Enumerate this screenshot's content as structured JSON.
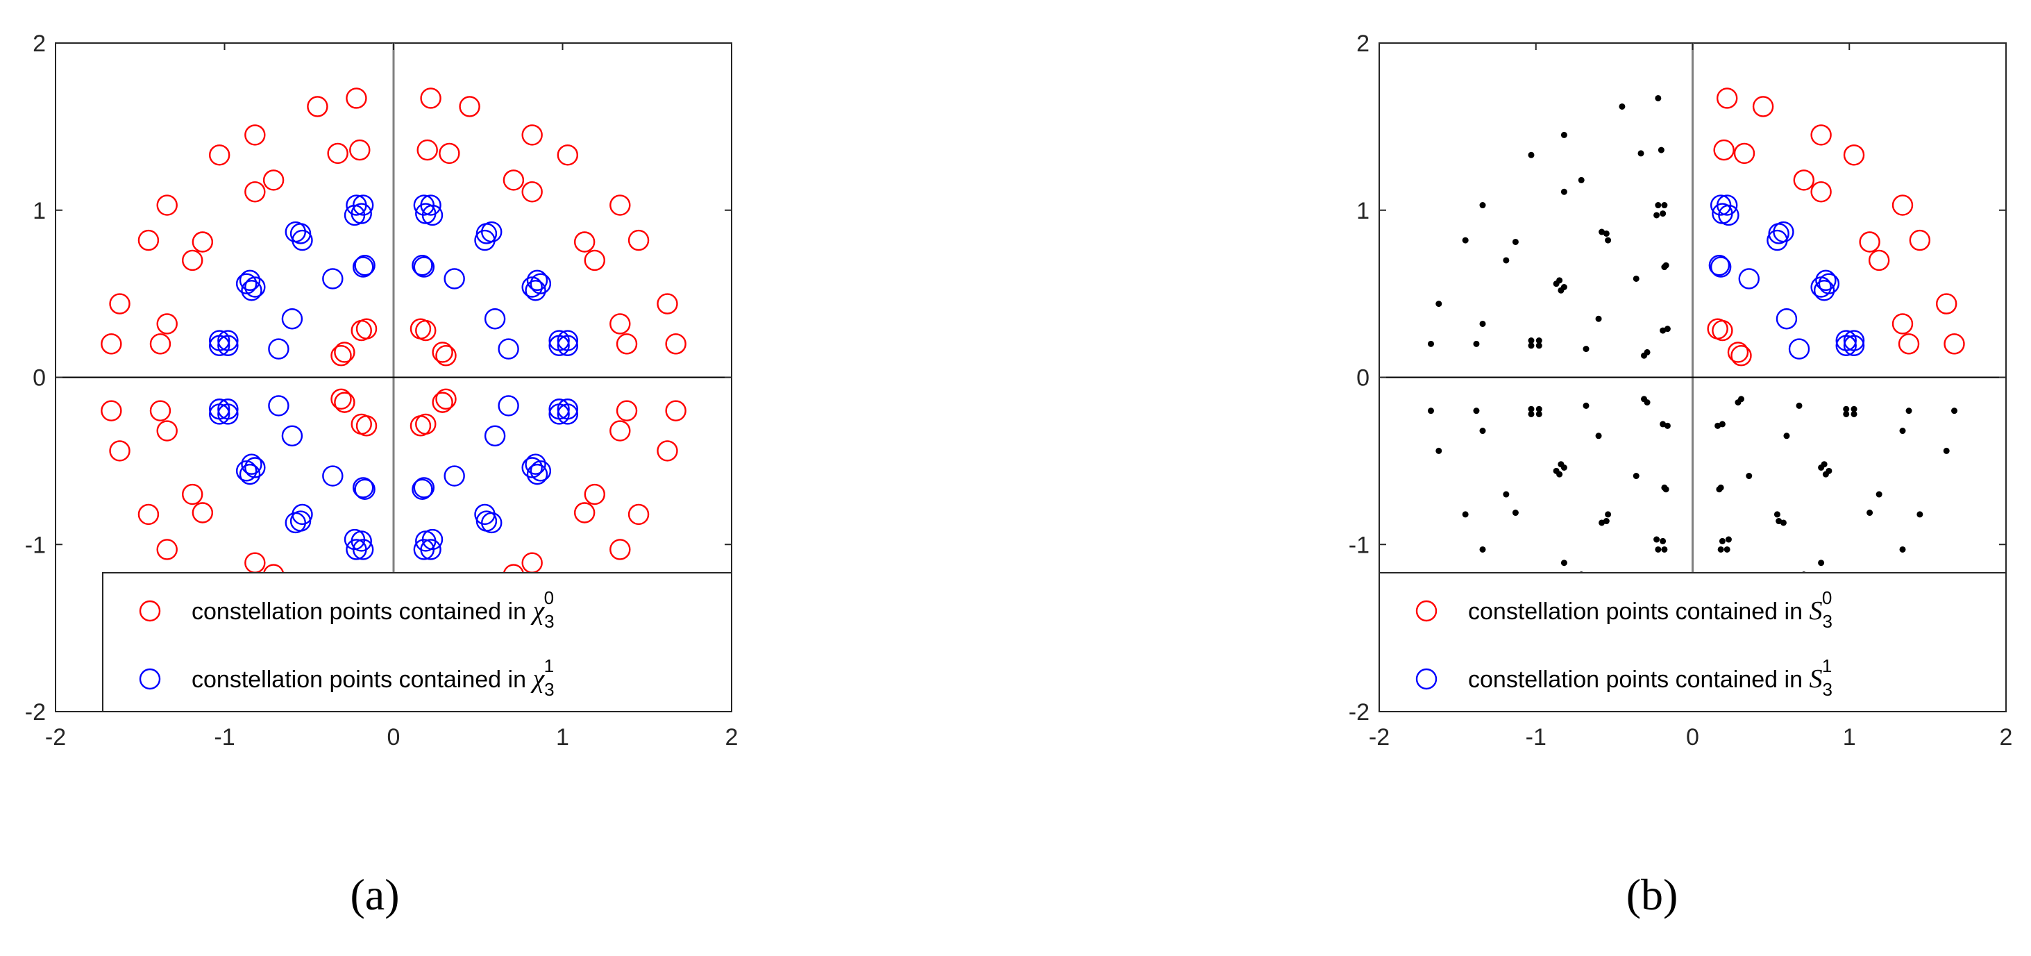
{
  "colors": {
    "set0": "#ff0000",
    "set1": "#0000ff",
    "projection": "#000000",
    "axis_line": "#808080"
  },
  "chart_data": [
    {
      "type": "scatter",
      "caption": "(a)",
      "xlim": [
        -2,
        2
      ],
      "ylim": [
        -2,
        2
      ],
      "xticks": [
        "-2",
        "-1",
        "0",
        "1",
        "2"
      ],
      "yticks": [
        "2",
        "1",
        "0",
        "-1",
        "-2"
      ],
      "grid": false,
      "legend_placement": "bottom-right",
      "legend": [
        {
          "text": "constellation points contained in",
          "symbol": "χ",
          "sub": "3",
          "sup": "0",
          "color": "#ff0000",
          "marker": "circle"
        },
        {
          "text": "constellation points contained in",
          "symbol": "χ",
          "sub": "3",
          "sup": "1",
          "color": "#0000ff",
          "marker": "circle"
        }
      ],
      "symmetry": "quadrant",
      "series": [
        {
          "marker": "circle",
          "color": "#ff0000",
          "points": [
            [
              0.16,
              0.29
            ],
            [
              0.19,
              0.28
            ],
            [
              0.29,
              0.15
            ],
            [
              0.31,
              0.13
            ],
            [
              0.22,
              1.67
            ],
            [
              0.45,
              1.62
            ],
            [
              0.2,
              1.36
            ],
            [
              0.33,
              1.34
            ],
            [
              0.71,
              1.18
            ],
            [
              0.82,
              1.45
            ],
            [
              0.82,
              1.11
            ],
            [
              1.03,
              1.33
            ],
            [
              1.13,
              0.81
            ],
            [
              1.19,
              0.7
            ],
            [
              1.34,
              1.03
            ],
            [
              1.45,
              0.82
            ],
            [
              1.34,
              0.32
            ],
            [
              1.38,
              0.2
            ],
            [
              1.62,
              0.44
            ],
            [
              1.67,
              0.2
            ]
          ]
        },
        {
          "marker": "circle",
          "color": "#0000ff",
          "points": [
            [
              0.18,
              1.03
            ],
            [
              0.22,
              1.03
            ],
            [
              0.19,
              0.98
            ],
            [
              0.23,
              0.97
            ],
            [
              0.55,
              0.86
            ],
            [
              0.58,
              0.87
            ],
            [
              0.54,
              0.82
            ],
            [
              0.17,
              0.67
            ],
            [
              0.18,
              0.66
            ],
            [
              0.36,
              0.59
            ],
            [
              0.85,
              0.58
            ],
            [
              0.87,
              0.56
            ],
            [
              0.82,
              0.54
            ],
            [
              0.84,
              0.52
            ],
            [
              0.6,
              0.35
            ],
            [
              0.68,
              0.17
            ],
            [
              0.98,
              0.22
            ],
            [
              1.03,
              0.22
            ],
            [
              0.98,
              0.19
            ],
            [
              1.03,
              0.19
            ]
          ]
        }
      ]
    },
    {
      "type": "scatter",
      "caption": "(b)",
      "xlim": [
        -2,
        2
      ],
      "ylim": [
        -2,
        2
      ],
      "xticks": [
        "-2",
        "-1",
        "0",
        "1",
        "2"
      ],
      "yticks": [
        "2",
        "1",
        "0",
        "-1",
        "-2"
      ],
      "grid": false,
      "legend_placement": "bottom-right",
      "legend": [
        {
          "text": "constellation points contained in",
          "symbol": "S",
          "sub": "3",
          "sup": "0",
          "color": "#ff0000",
          "marker": "circle"
        },
        {
          "text": "constellation points contained in",
          "symbol": "S",
          "sub": "3",
          "sup": "1",
          "color": "#0000ff",
          "marker": "circle"
        }
      ],
      "symmetry": "first-quadrant-only; other quadrants shown as black dots",
      "series": [
        {
          "marker": "circle",
          "color": "#ff0000",
          "points": [
            [
              0.16,
              0.29
            ],
            [
              0.19,
              0.28
            ],
            [
              0.29,
              0.15
            ],
            [
              0.31,
              0.13
            ],
            [
              0.22,
              1.67
            ],
            [
              0.45,
              1.62
            ],
            [
              0.2,
              1.36
            ],
            [
              0.33,
              1.34
            ],
            [
              0.71,
              1.18
            ],
            [
              0.82,
              1.45
            ],
            [
              0.82,
              1.11
            ],
            [
              1.03,
              1.33
            ],
            [
              1.13,
              0.81
            ],
            [
              1.19,
              0.7
            ],
            [
              1.34,
              1.03
            ],
            [
              1.45,
              0.82
            ],
            [
              1.34,
              0.32
            ],
            [
              1.38,
              0.2
            ],
            [
              1.62,
              0.44
            ],
            [
              1.67,
              0.2
            ]
          ]
        },
        {
          "marker": "circle",
          "color": "#0000ff",
          "points": [
            [
              0.18,
              1.03
            ],
            [
              0.22,
              1.03
            ],
            [
              0.19,
              0.98
            ],
            [
              0.23,
              0.97
            ],
            [
              0.55,
              0.86
            ],
            [
              0.58,
              0.87
            ],
            [
              0.54,
              0.82
            ],
            [
              0.17,
              0.67
            ],
            [
              0.18,
              0.66
            ],
            [
              0.36,
              0.59
            ],
            [
              0.85,
              0.58
            ],
            [
              0.87,
              0.56
            ],
            [
              0.82,
              0.54
            ],
            [
              0.84,
              0.52
            ],
            [
              0.6,
              0.35
            ],
            [
              0.68,
              0.17
            ],
            [
              0.98,
              0.22
            ],
            [
              1.03,
              0.22
            ],
            [
              0.98,
              0.19
            ],
            [
              1.03,
              0.19
            ]
          ]
        },
        {
          "marker": "dot",
          "color": "#000000",
          "note": "mirrored projections in quadrants II, III, IV"
        }
      ]
    }
  ]
}
